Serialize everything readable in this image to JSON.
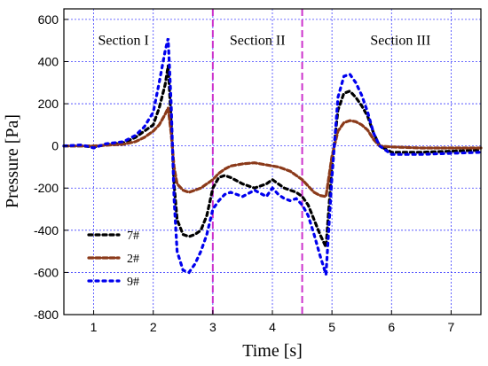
{
  "chart_data": {
    "type": "line",
    "xlabel": "Time [s]",
    "ylabel": "Pressure [Pa]",
    "xlim": [
      0.5,
      7.5
    ],
    "ylim": [
      -800,
      650
    ],
    "x_ticks": [
      1,
      2,
      3,
      4,
      5,
      6,
      7
    ],
    "y_ticks": [
      -800,
      -600,
      -400,
      -200,
      0,
      200,
      400,
      600
    ],
    "x_tick_labels": [
      "1",
      "2",
      "3",
      "4",
      "5",
      "6",
      "7"
    ],
    "y_tick_labels": [
      "-800",
      "-600",
      "-400",
      "-200",
      "0",
      "200",
      "400",
      "600"
    ],
    "grid": true,
    "legend_position": "bottom-left",
    "section_boundaries": [
      3.0,
      4.5
    ],
    "sections": [
      {
        "label": "Section  I",
        "x": 1.5,
        "y": 500
      },
      {
        "label": "Section  II",
        "x": 3.75,
        "y": 500
      },
      {
        "label": "Section III",
        "x": 6.15,
        "y": 500
      }
    ],
    "series": [
      {
        "name": "7#",
        "color": "#000000",
        "x": [
          0.5,
          0.8,
          1.0,
          1.2,
          1.5,
          1.7,
          1.85,
          2.0,
          2.1,
          2.2,
          2.25,
          2.3,
          2.35,
          2.4,
          2.5,
          2.6,
          2.7,
          2.8,
          2.9,
          3.0,
          3.1,
          3.2,
          3.3,
          3.5,
          3.7,
          3.9,
          4.0,
          4.1,
          4.2,
          4.3,
          4.4,
          4.5,
          4.6,
          4.7,
          4.8,
          4.9,
          5.0,
          5.1,
          5.2,
          5.3,
          5.4,
          5.5,
          5.6,
          5.7,
          5.8,
          6.0,
          6.5,
          7.0,
          7.5
        ],
        "y": [
          0,
          0,
          -5,
          5,
          15,
          40,
          70,
          100,
          180,
          290,
          380,
          120,
          -180,
          -350,
          -420,
          -430,
          -420,
          -400,
          -330,
          -200,
          -150,
          -140,
          -150,
          -180,
          -200,
          -180,
          -160,
          -180,
          -200,
          -210,
          -220,
          -240,
          -280,
          -350,
          -420,
          -480,
          -100,
          170,
          250,
          260,
          230,
          190,
          140,
          60,
          0,
          -30,
          -30,
          -25,
          -20
        ]
      },
      {
        "name": "2#",
        "color": "#8B3A1A",
        "x": [
          0.5,
          0.8,
          1.0,
          1.2,
          1.5,
          1.7,
          1.85,
          2.0,
          2.1,
          2.2,
          2.25,
          2.3,
          2.35,
          2.4,
          2.5,
          2.6,
          2.7,
          2.8,
          2.9,
          3.0,
          3.1,
          3.2,
          3.3,
          3.5,
          3.7,
          3.9,
          4.0,
          4.1,
          4.2,
          4.3,
          4.4,
          4.5,
          4.6,
          4.7,
          4.8,
          4.9,
          5.0,
          5.1,
          5.2,
          5.3,
          5.4,
          5.5,
          5.6,
          5.7,
          5.8,
          6.0,
          6.5,
          7.0,
          7.5
        ],
        "y": [
          0,
          0,
          0,
          3,
          8,
          20,
          40,
          70,
          100,
          150,
          180,
          60,
          -100,
          -180,
          -210,
          -220,
          -210,
          -200,
          -180,
          -160,
          -130,
          -110,
          -95,
          -85,
          -80,
          -90,
          -95,
          -100,
          -110,
          -120,
          -140,
          -160,
          -190,
          -220,
          -235,
          -240,
          -50,
          70,
          110,
          120,
          115,
          100,
          75,
          30,
          0,
          -5,
          -10,
          -10,
          -10
        ]
      },
      {
        "name": "9#",
        "color": "#0000EE",
        "x": [
          0.5,
          0.8,
          1.0,
          1.2,
          1.5,
          1.7,
          1.85,
          2.0,
          2.1,
          2.2,
          2.25,
          2.3,
          2.35,
          2.4,
          2.5,
          2.6,
          2.7,
          2.8,
          2.9,
          3.0,
          3.1,
          3.2,
          3.3,
          3.5,
          3.7,
          3.9,
          4.0,
          4.1,
          4.2,
          4.3,
          4.4,
          4.5,
          4.6,
          4.7,
          4.8,
          4.9,
          5.0,
          5.1,
          5.2,
          5.3,
          5.4,
          5.5,
          5.6,
          5.7,
          5.8,
          6.0,
          6.5,
          7.0,
          7.5
        ],
        "y": [
          0,
          5,
          -10,
          10,
          20,
          50,
          90,
          160,
          300,
          450,
          510,
          200,
          -250,
          -500,
          -590,
          -600,
          -560,
          -500,
          -420,
          -300,
          -260,
          -230,
          -220,
          -240,
          -210,
          -240,
          -200,
          -230,
          -250,
          -260,
          -250,
          -280,
          -330,
          -420,
          -520,
          -610,
          -150,
          230,
          330,
          340,
          300,
          240,
          160,
          60,
          0,
          -40,
          -40,
          -35,
          -30
        ]
      }
    ]
  }
}
